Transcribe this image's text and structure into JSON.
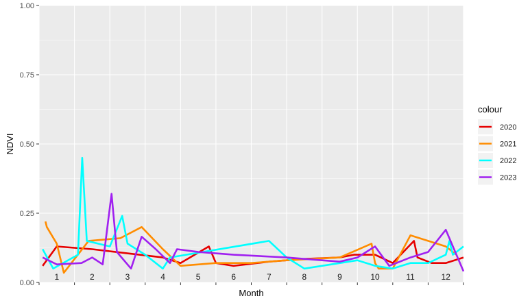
{
  "chart_data": {
    "type": "line",
    "xlabel": "Month",
    "ylabel": "NDVI",
    "ylim": [
      0,
      1
    ],
    "xlim": [
      0.5,
      12.5
    ],
    "y_ticks": [
      "0.00",
      "0.25",
      "0.50",
      "0.75",
      "1.00"
    ],
    "y_tick_values": [
      0,
      0.25,
      0.5,
      0.75,
      1.0
    ],
    "month_labels": [
      "1",
      "2",
      "3",
      "4",
      "5",
      "6",
      "7",
      "8",
      "9",
      "10",
      "11",
      "12"
    ],
    "background": "#ebebeb",
    "grid": true,
    "legend": {
      "title": "colour",
      "placement": "right"
    },
    "series": [
      {
        "name": "2020",
        "color": "#e60000",
        "points": [
          [
            0.6,
            0.06
          ],
          [
            1.0,
            0.13
          ],
          [
            2.0,
            0.12
          ],
          [
            3.0,
            0.105
          ],
          [
            4.0,
            0.09
          ],
          [
            4.5,
            0.07
          ],
          [
            5.3,
            0.13
          ],
          [
            5.5,
            0.07
          ],
          [
            6.0,
            0.06
          ],
          [
            7.0,
            0.075
          ],
          [
            8.0,
            0.085
          ],
          [
            9.0,
            0.09
          ],
          [
            9.4,
            0.1
          ],
          [
            10.0,
            0.1
          ],
          [
            10.5,
            0.07
          ],
          [
            11.1,
            0.15
          ],
          [
            11.2,
            0.09
          ],
          [
            11.6,
            0.07
          ],
          [
            12.0,
            0.07
          ],
          [
            12.5,
            0.09
          ]
        ]
      },
      {
        "name": "2021",
        "color": "#ff8c00",
        "points": [
          [
            0.68,
            0.22
          ],
          [
            0.72,
            0.2
          ],
          [
            1.0,
            0.14
          ],
          [
            1.2,
            0.035
          ],
          [
            1.9,
            0.15
          ],
          [
            2.8,
            0.16
          ],
          [
            3.4,
            0.2
          ],
          [
            4.0,
            0.12
          ],
          [
            4.5,
            0.06
          ],
          [
            5.5,
            0.07
          ],
          [
            6.5,
            0.07
          ],
          [
            7.5,
            0.08
          ],
          [
            9.0,
            0.09
          ],
          [
            9.9,
            0.14
          ],
          [
            10.0,
            0.07
          ],
          [
            10.1,
            0.05
          ],
          [
            10.5,
            0.05
          ],
          [
            11.0,
            0.17
          ],
          [
            11.5,
            0.15
          ],
          [
            12.0,
            0.13
          ],
          [
            12.3,
            0.1
          ]
        ]
      },
      {
        "name": "2022",
        "color": "#00ffff",
        "points": [
          [
            0.6,
            0.12
          ],
          [
            0.9,
            0.05
          ],
          [
            1.6,
            0.1
          ],
          [
            1.72,
            0.45
          ],
          [
            1.85,
            0.15
          ],
          [
            2.5,
            0.13
          ],
          [
            2.85,
            0.24
          ],
          [
            3.0,
            0.14
          ],
          [
            3.5,
            0.1
          ],
          [
            4.0,
            0.05
          ],
          [
            4.2,
            0.09
          ],
          [
            7.0,
            0.15
          ],
          [
            7.5,
            0.09
          ],
          [
            8.0,
            0.05
          ],
          [
            9.5,
            0.08
          ],
          [
            10.0,
            0.06
          ],
          [
            10.5,
            0.05
          ],
          [
            11.0,
            0.07
          ],
          [
            11.5,
            0.07
          ],
          [
            12.0,
            0.1
          ],
          [
            12.1,
            0.15
          ],
          [
            12.2,
            0.1
          ],
          [
            12.5,
            0.13
          ]
        ]
      },
      {
        "name": "2023",
        "color": "#a020f0",
        "points": [
          [
            0.6,
            0.09
          ],
          [
            1.0,
            0.065
          ],
          [
            1.7,
            0.07
          ],
          [
            2.0,
            0.09
          ],
          [
            2.3,
            0.065
          ],
          [
            2.55,
            0.32
          ],
          [
            2.7,
            0.11
          ],
          [
            3.1,
            0.05
          ],
          [
            3.4,
            0.165
          ],
          [
            3.8,
            0.12
          ],
          [
            4.2,
            0.07
          ],
          [
            4.4,
            0.12
          ],
          [
            5.0,
            0.11
          ],
          [
            6.0,
            0.1
          ],
          [
            7.5,
            0.09
          ],
          [
            8.0,
            0.085
          ],
          [
            8.5,
            0.08
          ],
          [
            9.0,
            0.075
          ],
          [
            9.5,
            0.09
          ],
          [
            10.0,
            0.13
          ],
          [
            10.4,
            0.06
          ],
          [
            11.0,
            0.09
          ],
          [
            11.5,
            0.11
          ],
          [
            12.0,
            0.19
          ],
          [
            12.5,
            0.04
          ]
        ]
      }
    ]
  }
}
